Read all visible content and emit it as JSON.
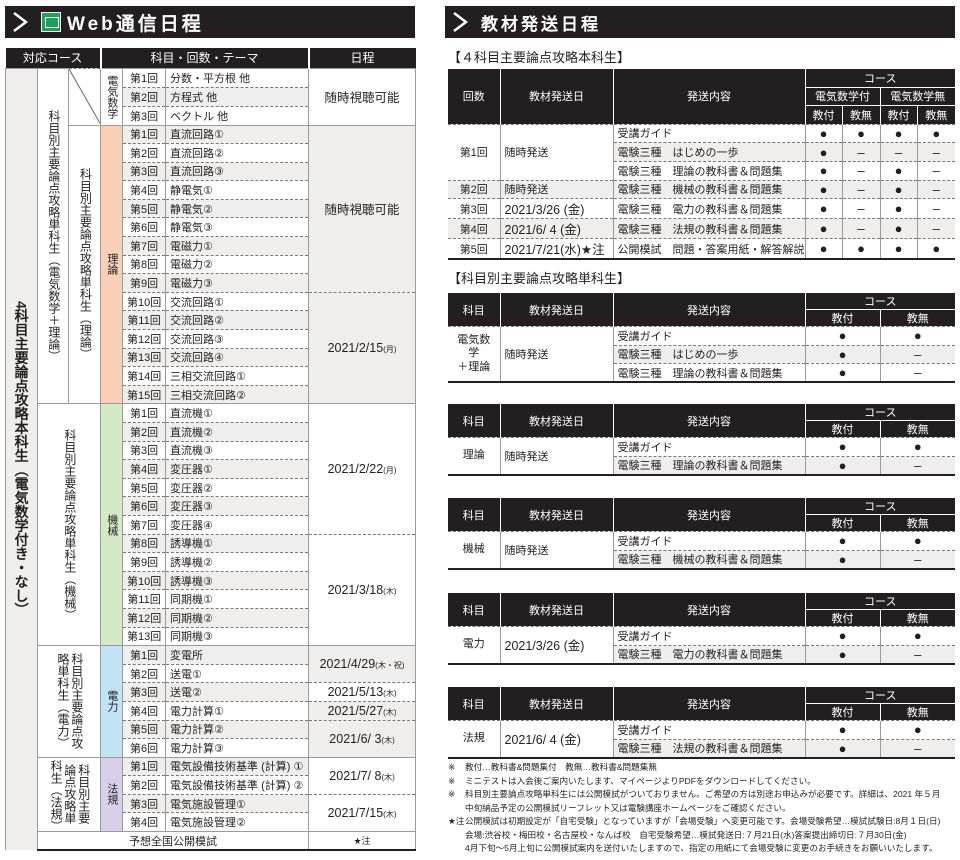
{
  "web": {
    "title": "Web通信日程",
    "icon": "web-app-icon",
    "headers": [
      "対応コース",
      "科目・回数・テーマ",
      "日程"
    ],
    "course_all": "4科目主要論点攻略本科生（電気数学付き・なし）",
    "groups": [
      {
        "course": "科目別主要論点攻略単科生（電気数学＋理論）",
        "subject": "電気数学",
        "color": "#ffffff",
        "lessons": [
          [
            "第1回",
            "分数・平方根 他"
          ],
          [
            "第2回",
            "方程式 他"
          ],
          [
            "第3回",
            "ベクトル 他"
          ]
        ],
        "dates": [
          {
            "date": "随時視聴可能",
            "day": "",
            "rows": 3
          }
        ]
      },
      {
        "course": "科目別主要論点攻略単科生（理論）",
        "subject": "理論",
        "color": "#f9cfb7",
        "lessons": [
          [
            "第1回",
            "直流回路①"
          ],
          [
            "第2回",
            "直流回路②"
          ],
          [
            "第3回",
            "直流回路③"
          ],
          [
            "第4回",
            "静電気①"
          ],
          [
            "第5回",
            "静電気②"
          ],
          [
            "第6回",
            "静電気③"
          ],
          [
            "第7回",
            "電磁力①"
          ],
          [
            "第8回",
            "電磁力②"
          ],
          [
            "第9回",
            "電磁力③"
          ],
          [
            "第10回",
            "交流回路①"
          ],
          [
            "第11回",
            "交流回路②"
          ],
          [
            "第12回",
            "交流回路③"
          ],
          [
            "第13回",
            "交流回路④"
          ],
          [
            "第14回",
            "三相交流回路①"
          ],
          [
            "第15回",
            "三相交流回路②"
          ]
        ],
        "dates": [
          {
            "date": "随時視聴可能",
            "day": "",
            "rows": 9
          },
          {
            "date": "2021/2/15",
            "day": "(月)",
            "rows": 6
          }
        ]
      },
      {
        "course": "科目別主要論点攻略単科生（機械）",
        "subject": "機械",
        "color": "#d4e9c6",
        "lessons": [
          [
            "第1回",
            "直流機①"
          ],
          [
            "第2回",
            "直流機②"
          ],
          [
            "第3回",
            "直流機③"
          ],
          [
            "第4回",
            "変圧器①"
          ],
          [
            "第5回",
            "変圧器②"
          ],
          [
            "第6回",
            "変圧器③"
          ],
          [
            "第7回",
            "変圧器④"
          ],
          [
            "第8回",
            "誘導機①"
          ],
          [
            "第9回",
            "誘導機②"
          ],
          [
            "第10回",
            "誘導機③"
          ],
          [
            "第11回",
            "同期機①"
          ],
          [
            "第12回",
            "同期機②"
          ],
          [
            "第13回",
            "同期機③"
          ]
        ],
        "dates": [
          {
            "date": "2021/2/22",
            "day": "(月)",
            "rows": 7
          },
          {
            "date": "2021/3/18",
            "day": "(木)",
            "rows": 6
          }
        ]
      },
      {
        "course": "科目別主要論点攻略単科生（電力）",
        "subject": "電力",
        "color": "#c2e2f5",
        "lessons": [
          [
            "第1回",
            "変電所"
          ],
          [
            "第2回",
            "送電①"
          ],
          [
            "第3回",
            "送電②"
          ],
          [
            "第4回",
            "電力計算①"
          ],
          [
            "第5回",
            "電力計算②"
          ],
          [
            "第6回",
            "電力計算③"
          ]
        ],
        "dates": [
          {
            "date": "2021/4/29",
            "day": "(木・祝)",
            "rows": 2
          },
          {
            "date": "2021/5/13",
            "day": "(木)",
            "rows": 1
          },
          {
            "date": "2021/5/27",
            "day": "(木)",
            "rows": 1
          },
          {
            "date": "2021/6/ 3",
            "day": "(木)",
            "rows": 2
          }
        ]
      },
      {
        "course": "科目別主要論点攻略単科生（法規）",
        "subject": "法規",
        "color": "#d8cfe8",
        "lessons": [
          [
            "第1回",
            "電気設備技術基準 (計算) ①"
          ],
          [
            "第2回",
            "電気設備技術基準 (計算) ②"
          ],
          [
            "第3回",
            "電気施設管理①"
          ],
          [
            "第4回",
            "電気施設管理②"
          ]
        ],
        "dates": [
          {
            "date": "2021/7/ 8",
            "day": "(木)",
            "rows": 2
          },
          {
            "date": "2021/7/15",
            "day": "(木)",
            "rows": 2
          }
        ]
      }
    ],
    "footer": {
      "label": "予想全国公開模試",
      "date": "★注"
    }
  },
  "ship": {
    "title": "教材発送日程",
    "section1": {
      "label": "【４科目主要論点攻略本科生】",
      "headers": {
        "no": "回数",
        "date": "教材発送日",
        "content": "発送内容",
        "course": "コース",
        "sub": [
          "電気数学付",
          "電気数学無"
        ],
        "kyo": [
          "教付",
          "教無",
          "教付",
          "教無"
        ]
      },
      "rows": [
        {
          "no": "第1回",
          "date": "随時発送",
          "items": [
            {
              "content": "受講ガイド",
              "marks": [
                "●",
                "●",
                "●",
                "●"
              ]
            },
            {
              "content": "電験三種　はじめの一歩",
              "marks": [
                "●",
                "–",
                "–",
                "–"
              ]
            },
            {
              "content": "電験三種　理論の教科書＆問題集",
              "marks": [
                "●",
                "–",
                "●",
                "–"
              ]
            }
          ]
        },
        {
          "no": "第2回",
          "date": "随時発送",
          "items": [
            {
              "content": "電験三種　機械の教科書＆問題集",
              "marks": [
                "●",
                "–",
                "●",
                "–"
              ]
            }
          ]
        },
        {
          "no": "第3回",
          "date": "2021/3/26 (金)",
          "items": [
            {
              "content": "電験三種　電力の教科書＆問題集",
              "marks": [
                "●",
                "–",
                "●",
                "–"
              ]
            }
          ]
        },
        {
          "no": "第4回",
          "date": "2021/6/  4 (金)",
          "items": [
            {
              "content": "電験三種　法規の教科書＆問題集",
              "marks": [
                "●",
                "–",
                "●",
                "–"
              ]
            }
          ]
        },
        {
          "no": "第5回",
          "date": "2021/7/21(水)★注",
          "items": [
            {
              "content": "公開模試　問題・答案用紙・解答解説",
              "marks": [
                "●",
                "●",
                "●",
                "●"
              ]
            }
          ]
        }
      ]
    },
    "section2": {
      "label": "【科目別主要論点攻略単科生】",
      "headers": {
        "subject": "科目",
        "date": "教材発送日",
        "content": "発送内容",
        "course": "コース",
        "kyo": [
          "教付",
          "教無"
        ]
      },
      "tables": [
        {
          "subject": "電気数学\n＋理論",
          "date": "随時発送",
          "items": [
            {
              "content": "受講ガイド",
              "marks": [
                "●",
                "●"
              ]
            },
            {
              "content": "電験三種　はじめの一歩",
              "marks": [
                "●",
                "–"
              ]
            },
            {
              "content": "電験三種　理論の教科書＆問題集",
              "marks": [
                "●",
                "–"
              ]
            }
          ]
        },
        {
          "subject": "理論",
          "date": "随時発送",
          "items": [
            {
              "content": "受講ガイド",
              "marks": [
                "●",
                "●"
              ]
            },
            {
              "content": "電験三種　理論の教科書＆問題集",
              "marks": [
                "●",
                "–"
              ]
            }
          ]
        },
        {
          "subject": "機械",
          "date": "随時発送",
          "items": [
            {
              "content": "受講ガイド",
              "marks": [
                "●",
                "●"
              ]
            },
            {
              "content": "電験三種　機械の教科書＆問題集",
              "marks": [
                "●",
                "–"
              ]
            }
          ]
        },
        {
          "subject": "電力",
          "date": "2021/3/26 (金)",
          "items": [
            {
              "content": "受講ガイド",
              "marks": [
                "●",
                "●"
              ]
            },
            {
              "content": "電験三種　電力の教科書＆問題集",
              "marks": [
                "●",
                "–"
              ]
            }
          ]
        },
        {
          "subject": "法規",
          "date": "2021/6/  4 (金)",
          "items": [
            {
              "content": "受講ガイド",
              "marks": [
                "●",
                "●"
              ]
            },
            {
              "content": "電験三種　法規の教科書＆問題集",
              "marks": [
                "●",
                "–"
              ]
            }
          ]
        }
      ]
    },
    "notes": [
      {
        "mark": "※",
        "lines": [
          "教付…教科書&問題集付　教無…教科書&問題集無"
        ]
      },
      {
        "mark": "※",
        "lines": [
          "ミニテストは入会後ご案内いたします、マイページよりPDFをダウンロードしてください。"
        ]
      },
      {
        "mark": "※",
        "lines": [
          "科目別主要論点攻略単科生には公開模試がついておりません。ご希望の方は別途お申込みが必要です。詳細は、2021 年５月",
          "中旬納品予定の公開模試リーフレット又は電験講座ホームページをご確認ください。"
        ]
      },
      {
        "mark": "★注",
        "lines": [
          "公開模試は初期設定が「自宅受験」となっていますが「会場受験」へ変更可能です。会場受験希望…模試試験日:8月１日(日)",
          "会場:渋谷校・梅田校・名古屋校・なんば校　自宅受験希望…模試発送日:７月21日(水)答案提出締切日:７月30日(金)",
          "4月下旬～5月上旬に公開模試案内を送付いたしますので、指定の用紙にて会場受験に変更のお手続きをお願いいたします。"
        ]
      }
    ]
  }
}
